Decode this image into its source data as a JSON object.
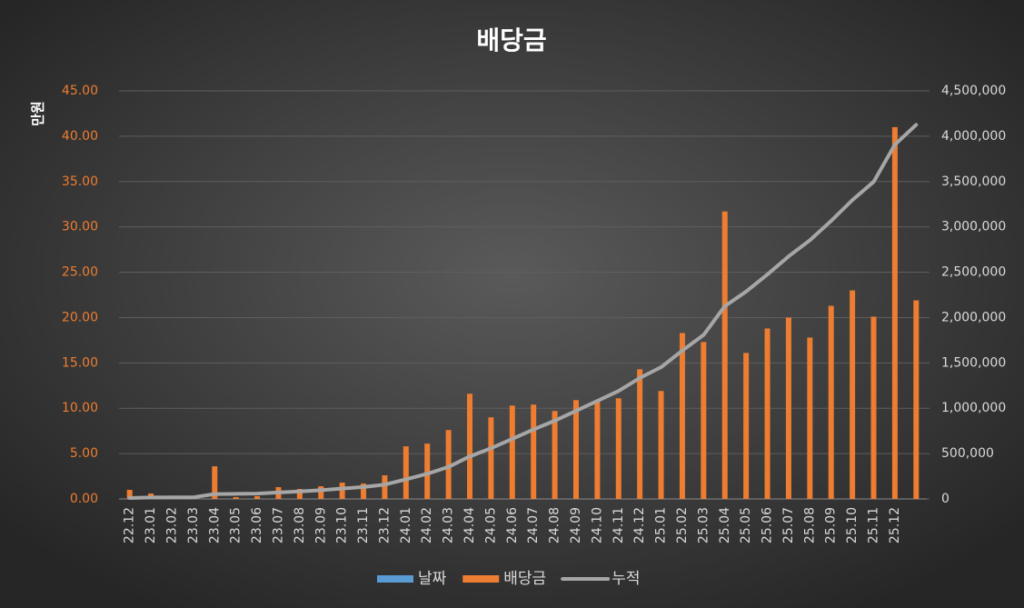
{
  "chart_data": {
    "type": "bar_line",
    "title": "배당금",
    "ylabel": "만원",
    "categories": [
      "22.12",
      "23.01",
      "23.02",
      "23.03",
      "23.04",
      "23.05",
      "23.06",
      "23.07",
      "23.08",
      "23.09",
      "23.10",
      "23.11",
      "23.12",
      "24.01",
      "24.02",
      "24.03",
      "24.04",
      "24.05",
      "24.06",
      "24.07",
      "24.08",
      "24.09",
      "24.10",
      "24.11",
      "24.12",
      "25.01",
      "25.02",
      "25.03",
      "25.04",
      "25.05",
      "25.06",
      "25.07",
      "25.08",
      "25.09",
      "25.10",
      "25.11",
      "25.12",
      null
    ],
    "series": [
      {
        "name": "날짜",
        "color": "#5b9bd5"
      },
      {
        "name": "배당금",
        "color": "#ed7d31",
        "values": [
          1.0,
          0.6,
          0.1,
          0.1,
          3.6,
          0.2,
          0.3,
          1.3,
          1.1,
          1.4,
          1.8,
          1.7,
          2.6,
          5.8,
          6.1,
          7.6,
          11.6,
          9.0,
          10.3,
          10.4,
          9.7,
          10.9,
          10.8,
          11.1,
          14.3,
          11.9,
          18.3,
          17.3,
          31.7,
          16.1,
          18.8,
          20.0,
          17.8,
          21.3,
          23.0,
          20.1,
          41.0,
          21.9
        ]
      },
      {
        "name": "누적",
        "color": "#a6a6a6",
        "axis": "y2",
        "values": [
          10000,
          16000,
          17000,
          18000,
          54000,
          56000,
          59000,
          72000,
          83000,
          97000,
          115000,
          132000,
          158000,
          216000,
          277000,
          353000,
          469000,
          559000,
          662000,
          766000,
          863000,
          972000,
          1080000,
          1191000,
          1334000,
          1453000,
          1636000,
          1809000,
          2126000,
          2287000,
          2475000,
          2675000,
          2853000,
          3066000,
          3296000,
          3497000,
          3907000,
          4126000
        ]
      }
    ],
    "ylim": [
      0,
      45
    ],
    "yticks": [
      {
        "value": 0,
        "label": "0.00"
      },
      {
        "value": 5,
        "label": "5.00"
      },
      {
        "value": 10,
        "label": "10.00"
      },
      {
        "value": 15,
        "label": "15.00"
      },
      {
        "value": 20,
        "label": "20.00"
      },
      {
        "value": 25,
        "label": "25.00"
      },
      {
        "value": 30,
        "label": "30.00"
      },
      {
        "value": 35,
        "label": "35.00"
      },
      {
        "value": 40,
        "label": "40.00"
      },
      {
        "value": 45,
        "label": "45.00"
      }
    ],
    "y2lim": [
      0,
      4500000
    ],
    "y2ticks": [
      0,
      {
        "value": 500000,
        "label": "500,000"
      },
      {
        "value": 1000000,
        "label": "1,000,000"
      },
      {
        "value": 1500000,
        "label": "1,500,000"
      },
      {
        "value": 2000000,
        "label": "2,000,000"
      },
      {
        "value": 2500000,
        "label": "2,500,000"
      },
      {
        "value": 3000000,
        "label": "3,000,000"
      },
      {
        "value": 3500000,
        "label": "3,500,000"
      },
      {
        "value": 4000000,
        "label": "4,000,000"
      },
      {
        "value": 4500000,
        "label": "4,500,000"
      }
    ],
    "grid": true,
    "legend": "bottom"
  }
}
